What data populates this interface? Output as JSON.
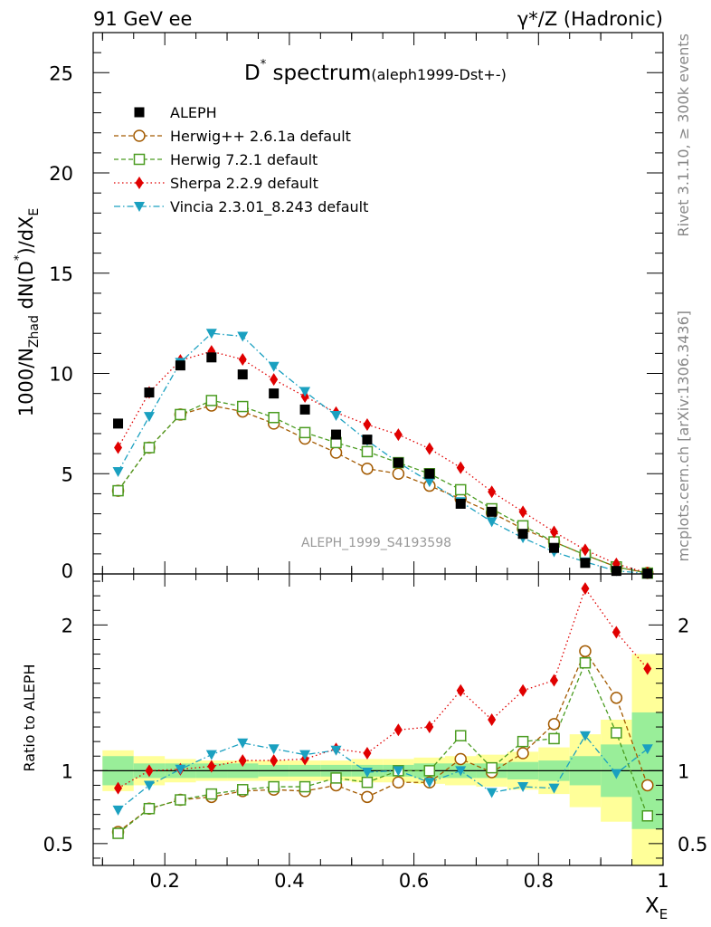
{
  "chart_data": {
    "type": "scatter",
    "header": {
      "left": "91 GeV ee",
      "right": "γ*/Z (Hadronic)"
    },
    "title": {
      "main_pre": "D",
      "main_sup": "*",
      "main_post": " spectrum",
      "sub": "(aleph1999-Dst+-)"
    },
    "xlabel": {
      "main": "X",
      "sub": "E"
    },
    "ylabel_main": {
      "p1": "1000/N",
      "s1": "Zhad",
      "p2": " dN(D",
      "sup": "*",
      "p3": ")/dX",
      "s2": "E"
    },
    "ylabel_ratio": "Ratio to ALEPH",
    "watermark": "ALEPH_1999_S4193598",
    "side_top": "Rivet 3.1.10, ≥ 300k events",
    "side_bottom": "mcplots.cern.ch [arXiv:1306.3436]",
    "xlim": [
      0.085,
      1.0
    ],
    "ylim_main": [
      0,
      27
    ],
    "ylim_ratio": [
      0.35,
      2.35
    ],
    "x_ticks": [
      "0.2",
      "0.4",
      "0.6",
      "0.8",
      "1"
    ],
    "y_ticks_main": [
      "5",
      "10",
      "15",
      "20",
      "25"
    ],
    "y_ticks_ratio": [
      "0.5",
      "1",
      "2"
    ],
    "x": [
      0.125,
      0.175,
      0.225,
      0.275,
      0.325,
      0.375,
      0.425,
      0.475,
      0.525,
      0.575,
      0.625,
      0.675,
      0.725,
      0.775,
      0.825,
      0.875,
      0.925,
      0.975
    ],
    "data": {
      "name": "ALEPH",
      "values": [
        7.5,
        9.05,
        10.4,
        10.8,
        9.95,
        9.0,
        8.2,
        6.95,
        6.7,
        5.55,
        5.0,
        3.5,
        3.1,
        2.0,
        1.3,
        0.55,
        0.15,
        0.02
      ]
    },
    "band_inner": [
      0.1,
      0.05,
      0.05,
      0.05,
      0.05,
      0.04,
      0.04,
      0.04,
      0.04,
      0.04,
      0.05,
      0.05,
      0.05,
      0.06,
      0.07,
      0.1,
      0.18,
      0.4
    ],
    "band_outer": [
      0.14,
      0.1,
      0.08,
      0.07,
      0.07,
      0.07,
      0.07,
      0.07,
      0.08,
      0.08,
      0.09,
      0.1,
      0.11,
      0.13,
      0.16,
      0.25,
      0.35,
      0.8
    ],
    "series": [
      {
        "name": "Herwig++ 2.6.1a default",
        "color": "#a35a00",
        "marker": "circle",
        "dash": "5,3",
        "values": [
          4.15,
          6.3,
          7.95,
          8.4,
          8.1,
          7.5,
          6.75,
          6.05,
          5.25,
          5.0,
          4.4,
          3.75,
          3.05,
          2.25,
          1.6,
          0.95,
          0.35,
          0.05
        ],
        "ratio": [
          0.58,
          0.74,
          0.8,
          0.82,
          0.86,
          0.87,
          0.86,
          0.9,
          0.82,
          0.92,
          0.92,
          1.08,
          0.99,
          1.12,
          1.32,
          1.82,
          1.5,
          0.9
        ]
      },
      {
        "name": "Herwig 7.2.1 default",
        "color": "#4b9c21",
        "marker": "square",
        "dash": "5,3",
        "values": [
          4.15,
          6.3,
          7.95,
          8.65,
          8.35,
          7.8,
          7.05,
          6.55,
          6.1,
          5.55,
          5.0,
          4.2,
          3.25,
          2.4,
          1.6,
          0.95,
          0.35,
          0.04
        ],
        "ratio": [
          0.57,
          0.74,
          0.8,
          0.84,
          0.87,
          0.89,
          0.89,
          0.95,
          0.92,
          1.0,
          1.0,
          1.24,
          1.02,
          1.2,
          1.22,
          1.74,
          1.26,
          0.69
        ]
      },
      {
        "name": "Sherpa 2.2.9 default",
        "color": "#e00000",
        "marker": "diamond",
        "dash": "1.5,3",
        "values": [
          6.3,
          9.05,
          10.65,
          11.1,
          10.7,
          9.7,
          8.85,
          8.05,
          7.45,
          6.95,
          6.25,
          5.3,
          4.1,
          3.1,
          2.1,
          1.2,
          0.5,
          0.05
        ],
        "ratio": [
          0.88,
          1.0,
          1.01,
          1.03,
          1.07,
          1.07,
          1.08,
          1.15,
          1.12,
          1.28,
          1.3,
          1.55,
          1.35,
          1.55,
          1.62,
          2.25,
          1.95,
          1.7
        ]
      },
      {
        "name": "Vincia 2.3.01_8.243 default",
        "color": "#1aa0c0",
        "marker": "triangle",
        "dash": "7,3,1.5,3",
        "values": [
          5.1,
          7.85,
          10.55,
          12.0,
          11.85,
          10.35,
          9.1,
          7.9,
          6.65,
          5.55,
          4.6,
          3.6,
          2.6,
          1.8,
          1.1,
          0.6,
          0.15,
          0.02
        ],
        "ratio": [
          0.73,
          0.9,
          1.01,
          1.11,
          1.19,
          1.15,
          1.11,
          1.14,
          0.99,
          1.0,
          0.92,
          1.0,
          0.85,
          0.89,
          0.88,
          1.24,
          0.98,
          1.15
        ]
      }
    ]
  }
}
